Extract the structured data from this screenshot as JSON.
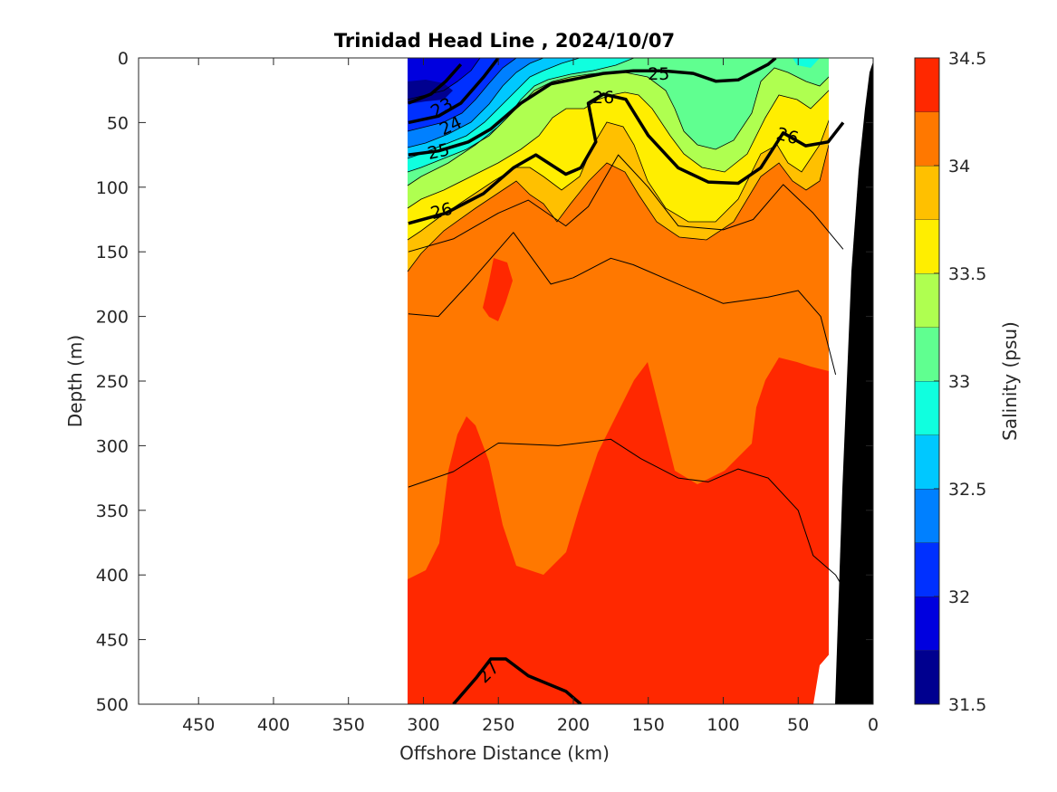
{
  "chart_data": {
    "type": "heatmap",
    "title": "Trinidad Head Line , 2024/10/07",
    "xlabel": "Offshore Distance (km)",
    "ylabel": "Depth (m)",
    "xlim": [
      490,
      0
    ],
    "ylim": [
      0,
      500
    ],
    "x_reversed": true,
    "y_reversed": true,
    "x_ticks": [
      450,
      400,
      350,
      300,
      250,
      200,
      150,
      100,
      50,
      0
    ],
    "y_ticks": [
      0,
      50,
      100,
      150,
      200,
      250,
      300,
      350,
      400,
      450,
      500
    ],
    "colorbar": {
      "label": "Salinity (psu)",
      "range": [
        31.5,
        34.5
      ],
      "tick_values": [
        31.5,
        32,
        32.5,
        33,
        33.5,
        34,
        34.5
      ],
      "tick_labels": [
        "31.5",
        "32",
        "32.5",
        "33",
        "33.5",
        "34",
        "34.5"
      ],
      "levels": [
        31.5,
        31.75,
        32,
        32.25,
        32.5,
        32.75,
        33,
        33.25,
        33.5,
        33.75,
        34,
        34.25,
        34.5
      ],
      "colors": [
        "#00008f",
        "#0000df",
        "#0030ff",
        "#0080ff",
        "#00c8ff",
        "#10ffdf",
        "#60ff90",
        "#afff50",
        "#ffee00",
        "#ffc000",
        "#ff7800",
        "#ff2800",
        "#d00000"
      ]
    },
    "data_x_range": [
      310,
      20
    ],
    "stations_x": [
      310,
      290,
      270,
      250,
      230,
      210,
      190,
      170,
      150,
      130,
      110,
      90,
      70,
      50,
      30
    ],
    "depths": [
      0,
      10,
      25,
      50,
      75,
      100,
      125,
      150,
      200,
      250,
      300,
      350,
      400,
      450,
      500
    ],
    "salinity_surface_min_x": 290,
    "density_contour_labels": [
      "23",
      "24",
      "25",
      "25",
      "26",
      "26",
      "26",
      "27"
    ],
    "density_contours": [
      {
        "sigma": "23",
        "major": true,
        "points": [
          [
            310,
            35
          ],
          [
            295,
            28
          ],
          [
            285,
            18
          ],
          [
            275,
            5
          ]
        ]
      },
      {
        "sigma": "24",
        "major": true,
        "points": [
          [
            310,
            50
          ],
          [
            290,
            45
          ],
          [
            275,
            35
          ],
          [
            260,
            15
          ],
          [
            250,
            0
          ]
        ]
      },
      {
        "sigma": "25",
        "major": true,
        "points": [
          [
            310,
            75
          ],
          [
            290,
            72
          ],
          [
            270,
            65
          ],
          [
            255,
            55
          ],
          [
            235,
            35
          ],
          [
            215,
            20
          ],
          [
            180,
            12
          ],
          [
            160,
            10
          ],
          [
            140,
            10
          ],
          [
            120,
            12
          ],
          [
            105,
            18
          ],
          [
            90,
            17
          ],
          [
            70,
            5
          ],
          [
            65,
            0
          ]
        ]
      },
      {
        "sigma": "26",
        "major": true,
        "points": [
          [
            310,
            128
          ],
          [
            285,
            120
          ],
          [
            260,
            105
          ],
          [
            240,
            85
          ],
          [
            225,
            75
          ],
          [
            205,
            90
          ],
          [
            195,
            85
          ],
          [
            185,
            65
          ],
          [
            190,
            35
          ],
          [
            180,
            28
          ],
          [
            165,
            32
          ],
          [
            150,
            60
          ],
          [
            130,
            85
          ],
          [
            110,
            96
          ],
          [
            90,
            97
          ],
          [
            75,
            85
          ],
          [
            60,
            58
          ],
          [
            45,
            68
          ],
          [
            30,
            65
          ],
          [
            20,
            50
          ]
        ]
      },
      {
        "sigma": "",
        "major": false,
        "points": [
          [
            310,
            150
          ],
          [
            280,
            140
          ],
          [
            250,
            120
          ],
          [
            230,
            110
          ],
          [
            205,
            130
          ],
          [
            190,
            115
          ],
          [
            170,
            75
          ],
          [
            150,
            100
          ],
          [
            130,
            130
          ],
          [
            100,
            133
          ],
          [
            80,
            125
          ],
          [
            60,
            98
          ],
          [
            40,
            120
          ],
          [
            20,
            148
          ]
        ]
      },
      {
        "sigma": "",
        "major": false,
        "points": [
          [
            310,
            198
          ],
          [
            290,
            200
          ],
          [
            270,
            175
          ],
          [
            240,
            135
          ],
          [
            215,
            175
          ],
          [
            200,
            170
          ],
          [
            175,
            155
          ],
          [
            160,
            160
          ],
          [
            130,
            175
          ],
          [
            100,
            190
          ],
          [
            70,
            185
          ],
          [
            50,
            180
          ],
          [
            35,
            200
          ],
          [
            25,
            245
          ]
        ]
      },
      {
        "sigma": "",
        "major": false,
        "points": [
          [
            310,
            332
          ],
          [
            280,
            320
          ],
          [
            250,
            298
          ],
          [
            210,
            300
          ],
          [
            175,
            295
          ],
          [
            155,
            310
          ],
          [
            130,
            325
          ],
          [
            110,
            328
          ],
          [
            90,
            318
          ],
          [
            70,
            325
          ],
          [
            50,
            350
          ],
          [
            40,
            385
          ],
          [
            25,
            400
          ],
          [
            20,
            410
          ]
        ]
      },
      {
        "sigma": "27",
        "major": true,
        "points": [
          [
            280,
            500
          ],
          [
            265,
            480
          ],
          [
            255,
            465
          ],
          [
            245,
            465
          ],
          [
            230,
            478
          ],
          [
            205,
            490
          ],
          [
            195,
            500
          ]
        ]
      }
    ]
  }
}
